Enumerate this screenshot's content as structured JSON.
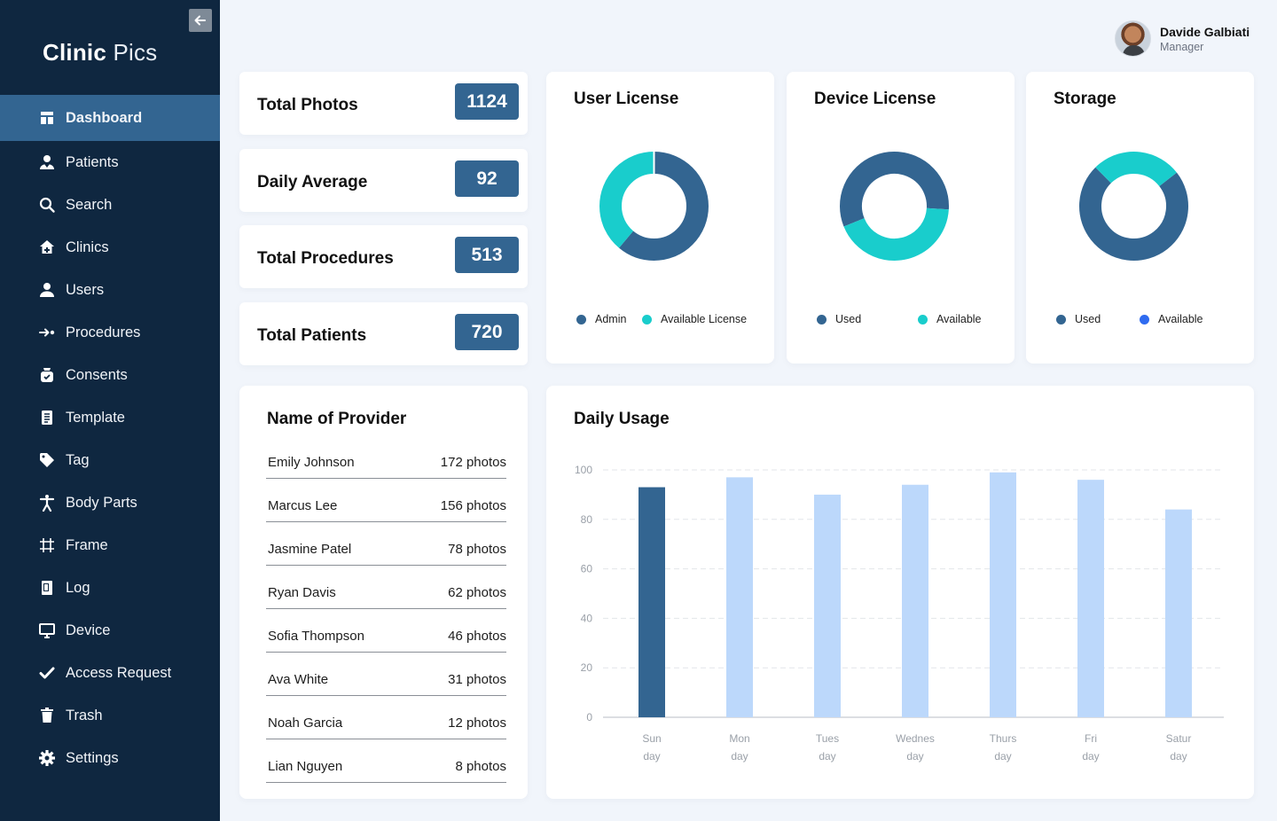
{
  "app": {
    "logo_bold": "Clinic",
    "logo_light": "Pics"
  },
  "user": {
    "name": "Davide Galbiati",
    "role": "Manager"
  },
  "sidebar": {
    "items": [
      {
        "label": "Dashboard",
        "icon": "dashboard-icon",
        "active": true
      },
      {
        "label": "Patients",
        "icon": "patient-icon"
      },
      {
        "label": "Search",
        "icon": "search-icon"
      },
      {
        "label": "Clinics",
        "icon": "clinic-icon"
      },
      {
        "label": "Users",
        "icon": "user-icon"
      },
      {
        "label": "Procedures",
        "icon": "procedure-icon"
      },
      {
        "label": "Consents",
        "icon": "consent-icon"
      },
      {
        "label": "Template",
        "icon": "template-icon"
      },
      {
        "label": "Tag",
        "icon": "tag-icon"
      },
      {
        "label": "Body Parts",
        "icon": "body-icon"
      },
      {
        "label": "Frame",
        "icon": "frame-icon"
      },
      {
        "label": "Log",
        "icon": "log-icon"
      },
      {
        "label": "Device",
        "icon": "device-icon"
      },
      {
        "label": "Access Request",
        "icon": "check-icon"
      },
      {
        "label": "Trash",
        "icon": "trash-icon"
      },
      {
        "label": "Settings",
        "icon": "gear-icon"
      }
    ]
  },
  "stats": [
    {
      "label": "Total Photos",
      "value": "1124"
    },
    {
      "label": "Daily Average",
      "value": "92"
    },
    {
      "label": "Total Procedures",
      "value": "513"
    },
    {
      "label": "Total Patients",
      "value": "720"
    }
  ],
  "colors": {
    "dark": "#336591",
    "teal": "#19cdcc",
    "blue": "#2f6bf0",
    "light_bar": "#bcd8fb",
    "sidebar": "#0f2740"
  },
  "user_license": {
    "title": "User License",
    "legend": [
      "Admin",
      "Available License"
    ],
    "chart_data": {
      "type": "pie",
      "categories": [
        "Admin",
        "Available License"
      ],
      "values": [
        61,
        39
      ]
    }
  },
  "device_license": {
    "title": "Device License",
    "legend": [
      "Used",
      "Available"
    ],
    "chart_data": {
      "type": "pie",
      "categories": [
        "Used",
        "Available"
      ],
      "values": [
        57,
        43
      ]
    }
  },
  "storage": {
    "title": "Storage",
    "legend": [
      "Used",
      "Available"
    ],
    "chart_data": {
      "type": "pie",
      "categories": [
        "Used",
        "Available"
      ],
      "values": [
        73,
        27
      ]
    }
  },
  "providers": {
    "title": "Name of Provider",
    "rows": [
      {
        "name": "Emily Johnson",
        "photos": "172 photos"
      },
      {
        "name": "Marcus Lee",
        "photos": "156 photos"
      },
      {
        "name": "Jasmine Patel",
        "photos": "78 photos"
      },
      {
        "name": "Ryan Davis",
        "photos": "62 photos"
      },
      {
        "name": "Sofia Thompson",
        "photos": "46 photos"
      },
      {
        "name": "Ava White",
        "photos": "31 photos"
      },
      {
        "name": "Noah Garcia",
        "photos": "12 photos"
      },
      {
        "name": "Lian Nguyen",
        "photos": "8 photos"
      }
    ]
  },
  "daily_usage": {
    "title": "Daily Usage",
    "chart_data": {
      "type": "bar",
      "categories": [
        [
          "Sun",
          "day"
        ],
        [
          "Mon",
          "day"
        ],
        [
          "Tues",
          "day"
        ],
        [
          "Wednes",
          "day"
        ],
        [
          "Thurs",
          "day"
        ],
        [
          "Fri",
          "day"
        ],
        [
          "Satur",
          "day"
        ]
      ],
      "values": [
        93,
        97,
        90,
        94,
        99,
        96,
        84
      ],
      "highlight_index": 0,
      "ylim": [
        0,
        100
      ],
      "yticks": [
        0,
        20,
        40,
        60,
        80,
        100
      ],
      "grid": true
    }
  }
}
